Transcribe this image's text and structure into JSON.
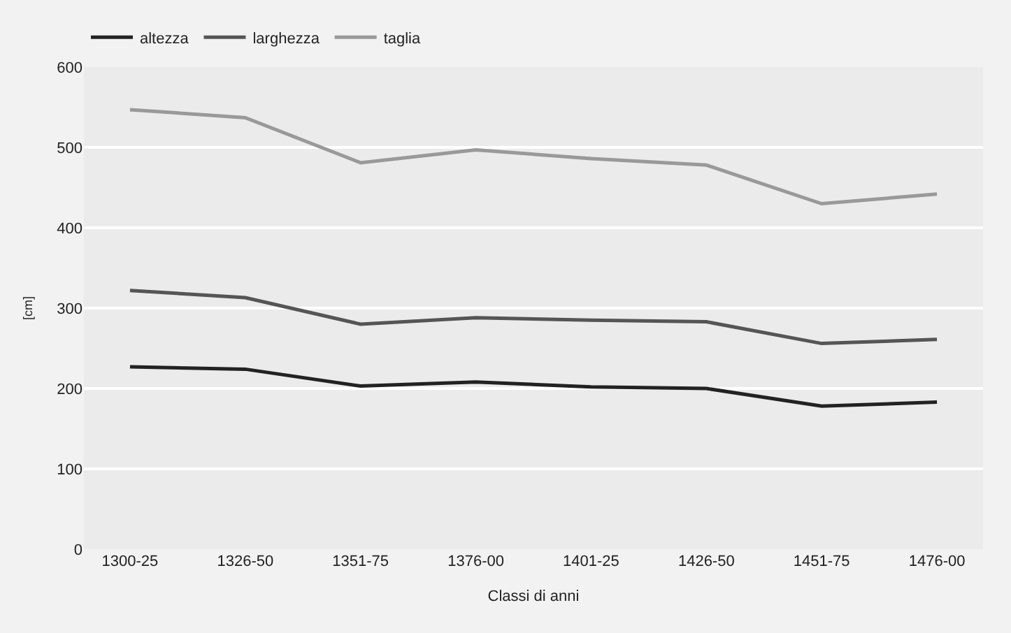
{
  "chart_data": {
    "type": "line",
    "xlabel": "Classi di anni",
    "ylabel": "[cm]",
    "categories": [
      "1300-25",
      "1326-50",
      "1351-75",
      "1376-00",
      "1401-25",
      "1426-50",
      "1451-75",
      "1476-00"
    ],
    "series": [
      {
        "name": "altezza",
        "color": "#222222",
        "values": [
          227,
          224,
          203,
          208,
          202,
          200,
          178,
          183
        ]
      },
      {
        "name": "larghezza",
        "color": "#555555",
        "values": [
          322,
          313,
          280,
          288,
          285,
          283,
          256,
          261
        ]
      },
      {
        "name": "taglia",
        "color": "#999999",
        "values": [
          547,
          537,
          481,
          497,
          486,
          478,
          430,
          442
        ]
      }
    ],
    "ylim": [
      0,
      600
    ],
    "yticks": [
      0,
      100,
      200,
      300,
      400,
      500,
      600
    ],
    "grid": "y",
    "legend": "top left",
    "marker": "none",
    "line_style": "solid"
  }
}
